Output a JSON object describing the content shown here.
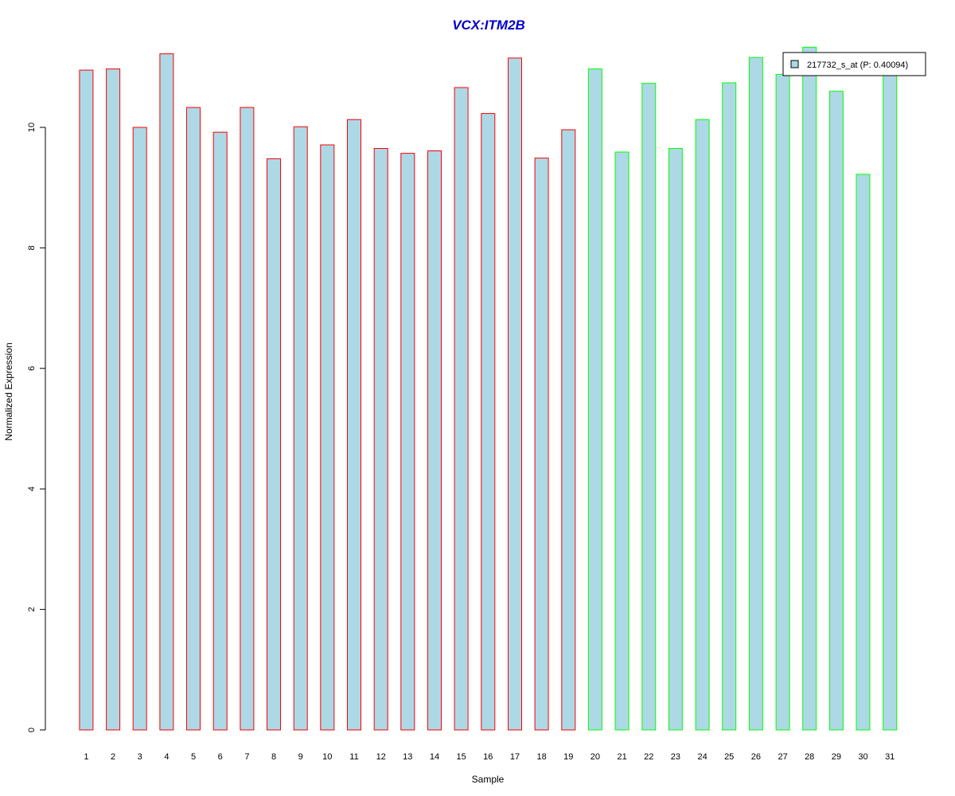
{
  "chart_data": {
    "type": "bar",
    "title": "VCX:ITM2B",
    "xlabel": "Sample",
    "ylabel": "Normalized Expression",
    "categories": [
      "1",
      "2",
      "3",
      "4",
      "5",
      "6",
      "7",
      "8",
      "9",
      "10",
      "11",
      "12",
      "13",
      "14",
      "15",
      "16",
      "17",
      "18",
      "19",
      "20",
      "21",
      "22",
      "23",
      "24",
      "25",
      "26",
      "27",
      "28",
      "29",
      "30",
      "31"
    ],
    "values": [
      10.95,
      10.97,
      10.0,
      11.22,
      10.33,
      9.92,
      10.33,
      9.48,
      10.01,
      9.71,
      10.13,
      9.65,
      9.57,
      9.61,
      10.66,
      10.23,
      11.15,
      9.49,
      9.96,
      10.97,
      9.59,
      10.73,
      9.65,
      10.13,
      10.74,
      11.16,
      10.88,
      11.33,
      10.6,
      9.22,
      10.98
    ],
    "groups": [
      "red",
      "red",
      "red",
      "red",
      "red",
      "red",
      "red",
      "red",
      "red",
      "red",
      "red",
      "red",
      "red",
      "red",
      "red",
      "red",
      "red",
      "red",
      "red",
      "green",
      "green",
      "green",
      "green",
      "green",
      "green",
      "green",
      "green",
      "green",
      "green",
      "green",
      "green"
    ],
    "yticks": [
      0,
      2,
      4,
      6,
      8,
      10
    ],
    "ylim": [
      0,
      11.4
    ],
    "legend": {
      "placement": "top-right",
      "entries": [
        {
          "label": "217732_s_at (P: 0.40094)",
          "color": "#ADD8E6"
        }
      ]
    },
    "grid": false,
    "colors": {
      "fill": "#ADD8E6",
      "border_group1": "#FF0000",
      "border_group2": "#00FF00",
      "title": "#0000CD"
    }
  }
}
